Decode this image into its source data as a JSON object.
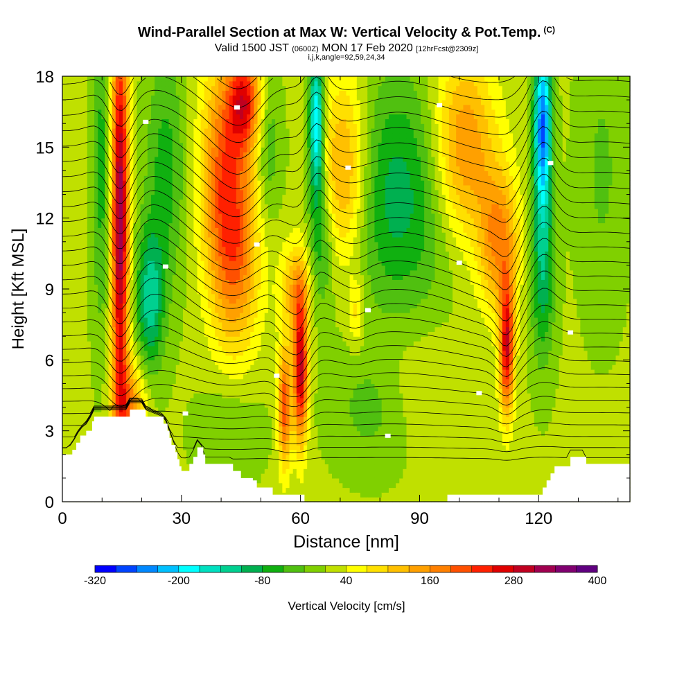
{
  "figure": {
    "title": "Wind-Parallel Section at Max W: Vertical Velocity & Pot.Temp.",
    "copyright_mark": "(C)",
    "subtitle_valid": "Valid 1500 JST",
    "subtitle_utc": "(0600Z)",
    "subtitle_date": "MON 17 Feb 2020",
    "subtitle_fcst": "[12hrFcst@2309z]",
    "subtitle_indices": "i,j,k,angle=92,59,24,34"
  },
  "chart_data": {
    "type": "heatmap",
    "xlabel": "Distance [nm]",
    "ylabel": "Height [Kft MSL]",
    "xlim": [
      0,
      143
    ],
    "ylim": [
      0,
      18
    ],
    "x_ticks": [
      0,
      30,
      60,
      90,
      120
    ],
    "y_ticks": [
      0,
      3,
      6,
      9,
      12,
      15,
      18
    ],
    "background_w": 15,
    "updrafts": [
      {
        "x": 14.5,
        "z": 12,
        "w": 320,
        "w_x": 2.2,
        "w_z": 9
      },
      {
        "x": 17,
        "z": 4,
        "w": 140,
        "w_x": 4,
        "w_z": 2
      },
      {
        "x": 41,
        "z": 14,
        "w": 180,
        "w_x": 6,
        "w_z": 5
      },
      {
        "x": 44,
        "z": 10,
        "w": 120,
        "w_x": 6,
        "w_z": 4
      },
      {
        "x": 46,
        "z": 17,
        "w": 200,
        "w_x": 4,
        "w_z": 2
      },
      {
        "x": 60,
        "z": 5.5,
        "w": 280,
        "w_x": 1.8,
        "w_z": 3
      },
      {
        "x": 56,
        "z": 4,
        "w": 200,
        "w_x": 1.6,
        "w_z": 2.5
      },
      {
        "x": 59,
        "z": 9,
        "w": 120,
        "w_x": 4,
        "w_z": 2
      },
      {
        "x": 71,
        "z": 14,
        "w": 150,
        "w_x": 6,
        "w_z": 4
      },
      {
        "x": 74,
        "z": 8,
        "w": 70,
        "w_x": 2,
        "w_z": 1.5
      },
      {
        "x": 101,
        "z": 15,
        "w": 160,
        "w_x": 8,
        "w_z": 4
      },
      {
        "x": 112,
        "z": 6.5,
        "w": 260,
        "w_x": 1.8,
        "w_z": 2.8
      },
      {
        "x": 110,
        "z": 11,
        "w": 150,
        "w_x": 5,
        "w_z": 3
      },
      {
        "x": 90,
        "z": 5,
        "w": 35,
        "w_x": 12,
        "w_z": 2.5
      }
    ],
    "downdrafts": [
      {
        "x": 64,
        "z": 16,
        "w": -230,
        "w_x": 1.8,
        "w_z": 3
      },
      {
        "x": 65,
        "z": 11,
        "w": -90,
        "w_x": 3,
        "w_z": 3
      },
      {
        "x": 121,
        "z": 16,
        "w": -270,
        "w_x": 2.2,
        "w_z": 3.5
      },
      {
        "x": 121,
        "z": 10,
        "w": -120,
        "w_x": 3,
        "w_z": 4
      },
      {
        "x": 22,
        "z": 8.5,
        "w": -140,
        "w_x": 3.5,
        "w_z": 3
      },
      {
        "x": 26,
        "z": 14,
        "w": -80,
        "w_x": 5,
        "w_z": 5
      },
      {
        "x": 10,
        "z": 14,
        "w": -80,
        "w_x": 2.5,
        "w_z": 7
      },
      {
        "x": 85,
        "z": 13,
        "w": -110,
        "w_x": 14,
        "w_z": 5
      },
      {
        "x": 52,
        "z": 15,
        "w": -60,
        "w_x": 3,
        "w_z": 3
      },
      {
        "x": 136,
        "z": 14,
        "w": -40,
        "w_x": 6,
        "w_z": 6
      },
      {
        "x": 78,
        "z": 4,
        "w": -50,
        "w_x": 10,
        "w_z": 2.5
      },
      {
        "x": 42,
        "z": 3,
        "w": -40,
        "w_x": 8,
        "w_z": 2
      }
    ],
    "terrain_kft": [
      [
        0,
        2.0
      ],
      [
        1.5,
        2.0
      ],
      [
        2.5,
        2.2
      ],
      [
        3.5,
        2.5
      ],
      [
        4.5,
        2.8
      ],
      [
        6,
        3.0
      ],
      [
        7.5,
        3.4
      ],
      [
        8,
        3.6
      ],
      [
        16,
        3.6
      ],
      [
        17,
        3.9
      ],
      [
        20.5,
        3.9
      ],
      [
        21,
        3.6
      ],
      [
        25.5,
        3.3
      ],
      [
        26.5,
        3.0
      ],
      [
        27,
        2.7
      ],
      [
        27.5,
        2.4
      ],
      [
        28.5,
        2.1
      ],
      [
        29,
        1.8
      ],
      [
        29.5,
        1.5
      ],
      [
        30,
        1.3
      ],
      [
        31.5,
        1.3
      ],
      [
        32,
        1.6
      ],
      [
        33,
        1.9
      ],
      [
        34,
        2.3
      ],
      [
        35.5,
        2.0
      ],
      [
        36,
        1.6
      ],
      [
        42,
        1.6
      ],
      [
        43,
        1.3
      ],
      [
        45,
        1.0
      ],
      [
        48,
        0.9
      ],
      [
        49,
        0.6
      ],
      [
        52,
        0.6
      ],
      [
        53,
        0.3
      ],
      [
        60,
        0.3
      ],
      [
        61,
        0.0
      ],
      [
        96,
        0.0
      ],
      [
        97,
        0.3
      ],
      [
        120,
        0.3
      ],
      [
        121,
        0.6
      ],
      [
        122,
        0.9
      ],
      [
        123,
        1.2
      ],
      [
        124,
        1.5
      ],
      [
        127,
        1.5
      ],
      [
        128,
        1.9
      ],
      [
        131,
        1.9
      ],
      [
        132,
        1.6
      ],
      [
        143,
        1.6
      ]
    ],
    "theta_levels": [
      2,
      4,
      6,
      8,
      10,
      12,
      14,
      16,
      18,
      20,
      22,
      24,
      26,
      28,
      30,
      32,
      34,
      36,
      38,
      40,
      42,
      44,
      46,
      48,
      50,
      52,
      54,
      56,
      58,
      60
    ]
  },
  "colorbar": {
    "label": "Vertical Velocity [cm/s]",
    "tick_labels": [
      "-320",
      "-200",
      "-80",
      "40",
      "160",
      "280",
      "400"
    ],
    "min": -320,
    "max": 400,
    "bins": [
      "#0000ff",
      "#0044ff",
      "#0088ff",
      "#00c0ff",
      "#00ffff",
      "#00e0c0",
      "#00d090",
      "#00b050",
      "#10b010",
      "#50c010",
      "#80d000",
      "#c0e000",
      "#ffff00",
      "#ffe000",
      "#ffc000",
      "#ffa000",
      "#ff8000",
      "#ff5000",
      "#ff2000",
      "#e00000",
      "#c00020",
      "#a00050",
      "#800070",
      "#600080"
    ]
  }
}
